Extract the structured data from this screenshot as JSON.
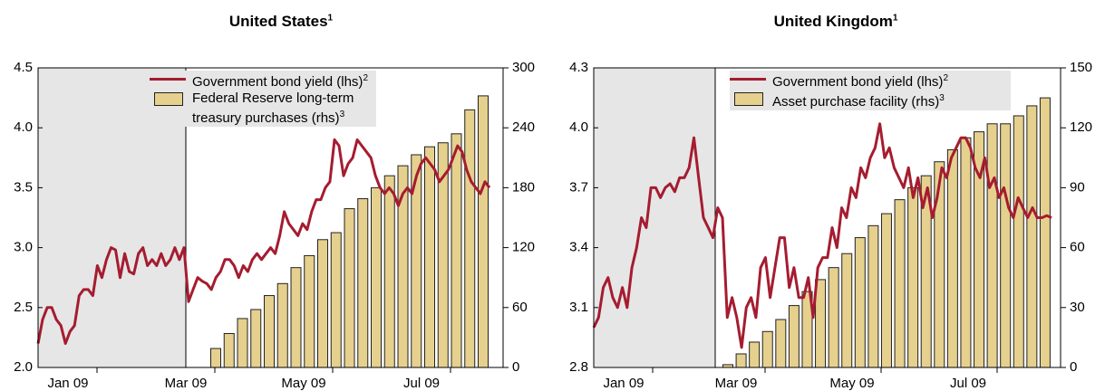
{
  "chart_data": [
    {
      "type": "bar-line",
      "title": "United States",
      "title_note": "1",
      "xticks": [
        "Jan 09",
        "Mar 09",
        "May 09",
        "Jul 09"
      ],
      "ylim": [
        2.0,
        4.5
      ],
      "yticks": [
        {
          "value": 2.0,
          "label": "2.0"
        },
        2.5,
        {
          "value": 3.0,
          "label": "3.0"
        },
        3.5,
        {
          "value": 4.0,
          "label": "4.0"
        },
        4.5
      ],
      "y2lim": [
        0,
        300
      ],
      "y2ticks": [
        0,
        60,
        120,
        180,
        240,
        300
      ],
      "series": [
        {
          "name": "Government bond yield (lhs)",
          "note": "2",
          "type": "line",
          "color": "#a51c30",
          "values": [
            2.2,
            2.4,
            2.5,
            2.5,
            2.4,
            2.35,
            2.2,
            2.3,
            2.35,
            2.6,
            2.65,
            2.65,
            2.6,
            2.85,
            2.75,
            2.9,
            3.0,
            2.98,
            2.75,
            2.95,
            2.8,
            2.78,
            2.95,
            3.0,
            2.85,
            2.9,
            2.85,
            2.95,
            2.85,
            2.9,
            3.0,
            2.9,
            3.0,
            2.55,
            2.65,
            2.75,
            2.72,
            2.7,
            2.65,
            2.75,
            2.8,
            2.9,
            2.9,
            2.85,
            2.75,
            2.85,
            2.8,
            2.9,
            2.95,
            2.9,
            2.95,
            3.0,
            2.95,
            3.1,
            3.3,
            3.2,
            3.15,
            3.1,
            3.2,
            3.15,
            3.3,
            3.4,
            3.4,
            3.5,
            3.55,
            3.9,
            3.85,
            3.6,
            3.7,
            3.75,
            3.9,
            3.85,
            3.8,
            3.75,
            3.6,
            3.5,
            3.45,
            3.5,
            3.45,
            3.35,
            3.45,
            3.5,
            3.45,
            3.6,
            3.7,
            3.75,
            3.7,
            3.65,
            3.55,
            3.6,
            3.65,
            3.75,
            3.85,
            3.8,
            3.65,
            3.55,
            3.5,
            3.45,
            3.55,
            3.5
          ]
        },
        {
          "name": "Federal Reserve long-term treasury purchases (rhs)",
          "note": "3",
          "type": "bar",
          "axis": "y2",
          "color": "#e6d08e",
          "values": [
            19,
            34,
            49,
            58,
            72,
            84,
            100,
            112,
            128,
            135,
            159,
            169,
            180,
            192,
            202,
            213,
            221,
            225,
            234,
            258,
            272
          ]
        }
      ]
    },
    {
      "type": "bar-line",
      "title": "United Kingdom",
      "title_note": "1",
      "xticks": [
        "Jan 09",
        "Mar 09",
        "May 09",
        "Jul 09"
      ],
      "ylim": [
        2.8,
        4.3
      ],
      "yticks": [
        2.8,
        3.1,
        3.4,
        3.7,
        {
          "value": 4.0,
          "label": "4.0"
        },
        4.3
      ],
      "y2lim": [
        0,
        150
      ],
      "y2ticks": [
        0,
        30,
        60,
        90,
        120,
        150
      ],
      "series": [
        {
          "name": "Government bond yield (lhs)",
          "note": "2",
          "type": "line",
          "color": "#a51c30",
          "values": [
            3.0,
            3.05,
            3.2,
            3.25,
            3.15,
            3.1,
            3.2,
            3.1,
            3.3,
            3.4,
            3.55,
            3.5,
            3.7,
            3.7,
            3.65,
            3.7,
            3.72,
            3.68,
            3.75,
            3.75,
            3.8,
            3.95,
            3.75,
            3.55,
            3.5,
            3.45,
            3.6,
            3.55,
            3.05,
            3.15,
            3.05,
            2.9,
            3.1,
            3.15,
            3.05,
            3.3,
            3.35,
            3.15,
            3.3,
            3.45,
            3.45,
            3.2,
            3.3,
            3.15,
            3.15,
            3.25,
            3.05,
            3.3,
            3.35,
            3.35,
            3.5,
            3.4,
            3.6,
            3.55,
            3.7,
            3.65,
            3.8,
            3.75,
            3.85,
            3.9,
            4.02,
            3.85,
            3.9,
            3.8,
            3.75,
            3.7,
            3.8,
            3.65,
            3.75,
            3.6,
            3.7,
            3.55,
            3.65,
            3.8,
            3.75,
            3.85,
            3.9,
            3.95,
            3.95,
            3.9,
            3.8,
            3.75,
            3.85,
            3.7,
            3.75,
            3.65,
            3.7,
            3.6,
            3.55,
            3.65,
            3.6,
            3.55,
            3.6,
            3.55,
            3.55,
            3.56,
            3.55
          ]
        },
        {
          "name": "Asset purchase facility (rhs)",
          "note": "3",
          "type": "bar",
          "axis": "y2",
          "color": "#e6d08e",
          "values": [
            1.4,
            6.8,
            12.7,
            18,
            24,
            31,
            38,
            44,
            50,
            57,
            65,
            71,
            77,
            84,
            90,
            96,
            103,
            109,
            115,
            118,
            122,
            122,
            126,
            131,
            135
          ]
        }
      ]
    }
  ]
}
